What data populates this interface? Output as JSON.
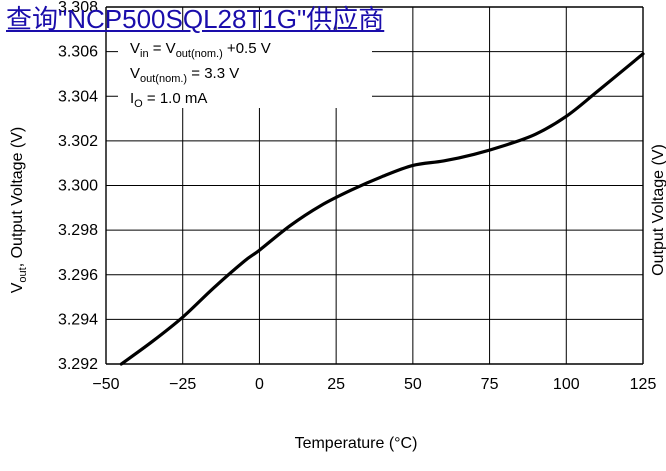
{
  "link_text": "查询\"NCP500SQL28T1G\"供应商",
  "annotation": {
    "line1": {
      "a": "V",
      "a_sub": "in",
      "b": " = V",
      "b_sub": "out(nom.)",
      "c": " +0.5 V"
    },
    "line2": {
      "a": "V",
      "a_sub": "out(nom.)",
      "b": " = 3.3 V"
    },
    "line3": {
      "a": "I",
      "a_sub": "O",
      "b": " = 1.0 mA"
    }
  },
  "colors": {
    "curve": "#000000",
    "grid": "#000000",
    "link": "#1a0dab"
  },
  "chart_data": {
    "type": "line",
    "xlabel": "Temperature (°C)",
    "ylabel": {
      "main": "V",
      "sub": "out",
      "rest": ", Output Voltage (V)"
    },
    "right_partial_label": "Output Voltage (V)",
    "xlim": [
      -50,
      125
    ],
    "ylim": [
      3.292,
      3.308
    ],
    "x_ticks": [
      "−50",
      "−25",
      "0",
      "25",
      "50",
      "75",
      "100",
      "125"
    ],
    "y_ticks": [
      "3.292",
      "3.294",
      "3.296",
      "3.298",
      "3.300",
      "3.302",
      "3.304",
      "3.306",
      "3.308"
    ],
    "grid": true,
    "series": [
      {
        "x": [
          -45,
          -35,
          -25,
          -15,
          -5,
          0,
          10,
          20,
          30,
          40,
          50,
          60,
          70,
          80,
          90,
          100,
          110,
          125
        ],
        "y": [
          3.292,
          3.293,
          3.2941,
          3.2954,
          3.2966,
          3.2971,
          3.2982,
          3.2991,
          3.2998,
          3.3004,
          3.3009,
          3.3011,
          3.3014,
          3.3018,
          3.3023,
          3.3031,
          3.3042,
          3.3059
        ]
      }
    ]
  }
}
